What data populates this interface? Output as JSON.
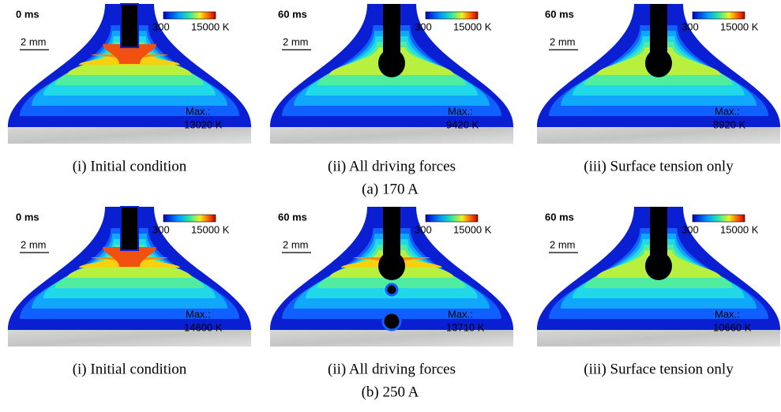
{
  "figure": {
    "rows": [
      {
        "caption": "(a) 170 A",
        "panels": [
          {
            "time": "0 ms",
            "scale_min": "300",
            "scale_max": "15000 K",
            "scale_bar": "2 mm",
            "max_label": "Max.:",
            "max_value": "13020 K",
            "caption": "(i) Initial condition"
          },
          {
            "time": "60 ms",
            "scale_min": "300",
            "scale_max": "15000 K",
            "scale_bar": "2 mm",
            "max_label": "Max.:",
            "max_value": "9420 K",
            "caption": "(ii) All driving forces"
          },
          {
            "time": "60 ms",
            "scale_min": "300",
            "scale_max": "15000 K",
            "scale_bar": "2 mm",
            "max_label": "Max.:",
            "max_value": "8920 K",
            "caption": "(iii) Surface tension only"
          }
        ]
      },
      {
        "caption": "(b) 250 A",
        "panels": [
          {
            "time": "0 ms",
            "scale_min": "300",
            "scale_max": "15000 K",
            "scale_bar": "2 mm",
            "max_label": "Max.:",
            "max_value": "14600 K",
            "caption": "(i) Initial condition"
          },
          {
            "time": "60 ms",
            "scale_min": "300",
            "scale_max": "15000 K",
            "scale_bar": "2 mm",
            "max_label": "Max.:",
            "max_value": "13710 K",
            "caption": "(ii) All driving forces"
          },
          {
            "time": "60 ms",
            "scale_min": "300",
            "scale_max": "15000 K",
            "scale_bar": "2 mm",
            "max_label": "Max.:",
            "max_value": "10660 K",
            "caption": "(iii) Surface tension only"
          }
        ]
      }
    ]
  }
}
